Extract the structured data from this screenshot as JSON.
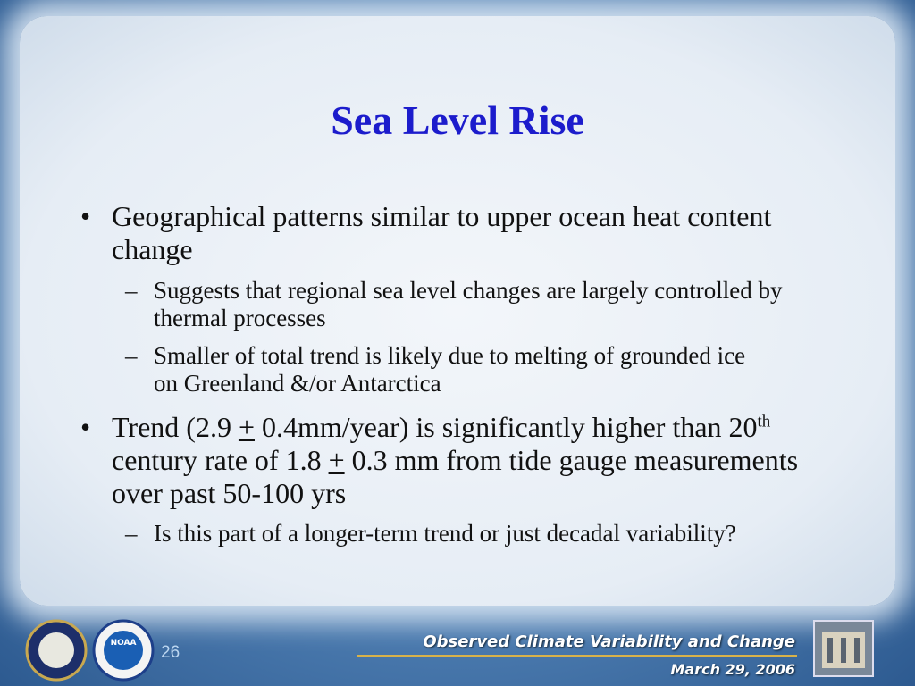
{
  "title": "Sea Level Rise",
  "bullets": [
    {
      "parts": [
        "Geographical patterns similar to upper ocean heat content change"
      ],
      "sub": [
        "Suggests that regional sea level changes are largely controlled by thermal processes",
        "Smaller of total trend is likely due to melting of grounded ice on Greenland &/or Antarctica"
      ]
    },
    {
      "parts": [
        "Trend (2.9 ",
        "+",
        " 0.4mm/year) is significantly higher than 20",
        "th",
        " century rate of 1.8 ",
        "+",
        " 0.3 mm from tide gauge measurements over past 50-100 yrs"
      ],
      "sub": [
        "Is this part of a longer-term trend or just decadal variability?"
      ]
    }
  ],
  "footer": {
    "page": "26",
    "caption": "Observed Climate Variability and Change",
    "date": "March 29, 2006",
    "logo": "NOAA"
  }
}
